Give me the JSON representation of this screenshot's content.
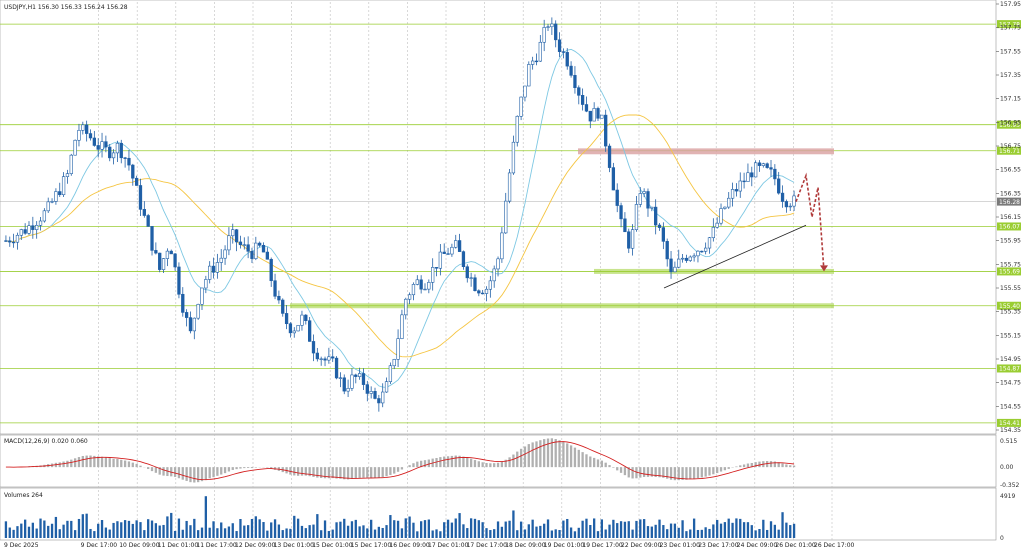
{
  "window": {
    "symbol_info": "USDJPY,H1  156.30 156.33 156.24 156.28"
  },
  "colors": {
    "bull": "#1f5fa6",
    "bear": "#1f5fa6",
    "ma_fast": "#7ec8e3",
    "ma_slow": "#f5c542",
    "level": "#9acd32",
    "resistance_zone": "#d9a0a0",
    "trend": "#222222",
    "forecast": "#b03a3a",
    "macd_hist": "#b0b0b0",
    "macd_signal": "#d42020",
    "volume": "#1f5fa6",
    "grid": "#bfbfbf",
    "current_tag": "#7a7a7a"
  },
  "main_panel": {
    "price_axis_ticks": [
      "157.95",
      "157.75",
      "157.55",
      "157.35",
      "157.15",
      "156.95",
      "156.75",
      "156.55",
      "156.35",
      "156.15",
      "155.95",
      "155.75",
      "155.55",
      "155.35",
      "155.15",
      "154.95",
      "154.75",
      "154.55",
      "154.35"
    ],
    "level_tags": [
      "157.78",
      "156.93",
      "156.71",
      "156.07",
      "155.69",
      "155.40",
      "154.87",
      "154.41"
    ],
    "current_price": "156.28"
  },
  "time_axis": [
    "9 Dec 2025",
    "9 Dec 17:00",
    "10 Dec 09:00",
    "11 Dec 01:00",
    "11 Dec 17:00",
    "12 Dec 09:00",
    "13 Dec 01:00",
    "15 Dec 01:00",
    "15 Dec 17:00",
    "16 Dec 09:00",
    "17 Dec 01:00",
    "17 Dec 17:00",
    "18 Dec 09:00",
    "19 Dec 01:00",
    "19 Dec 17:00",
    "22 Dec 09:00",
    "23 Dec 01:00",
    "23 Dec 17:00",
    "24 Dec 09:00",
    "26 Dec 01:00",
    "26 Dec 17:00"
  ],
  "macd_panel": {
    "label": "MACD(12,26,9) 0.020 0.060",
    "ticks": [
      "0.515",
      "0.00",
      "-0.352"
    ]
  },
  "volume_panel": {
    "label": "Volumes 264",
    "ticks": [
      "4919",
      "0"
    ]
  },
  "chart_data": {
    "type": "candlestick",
    "symbol": "USDJPY",
    "timeframe": "H1",
    "ylim": [
      154.35,
      157.95
    ],
    "horizontal_levels": [
      157.78,
      156.93,
      156.71,
      156.07,
      155.69,
      155.4,
      154.87,
      154.41
    ],
    "resistance_zone": {
      "from": 156.68,
      "to": 156.73
    },
    "close_path": [
      [
        0,
        155.95
      ],
      [
        4,
        156.05
      ],
      [
        8,
        156.2
      ],
      [
        12,
        156.5
      ],
      [
        14,
        156.9
      ],
      [
        16,
        156.85
      ],
      [
        18,
        156.75
      ],
      [
        20,
        156.7
      ],
      [
        22,
        156.75
      ],
      [
        24,
        156.6
      ],
      [
        26,
        156.3
      ],
      [
        28,
        156.0
      ],
      [
        30,
        155.7
      ],
      [
        32,
        155.95
      ],
      [
        34,
        155.5
      ],
      [
        36,
        155.15
      ],
      [
        38,
        155.55
      ],
      [
        40,
        155.7
      ],
      [
        42,
        155.8
      ],
      [
        44,
        156.0
      ],
      [
        46,
        155.9
      ],
      [
        48,
        155.85
      ],
      [
        50,
        155.9
      ],
      [
        52,
        155.6
      ],
      [
        54,
        155.3
      ],
      [
        56,
        155.2
      ],
      [
        58,
        155.3
      ],
      [
        60,
        155.05
      ],
      [
        62,
        154.95
      ],
      [
        64,
        154.9
      ],
      [
        66,
        154.7
      ],
      [
        68,
        154.8
      ],
      [
        70,
        154.75
      ],
      [
        72,
        154.6
      ],
      [
        74,
        154.65
      ],
      [
        76,
        155.0
      ],
      [
        78,
        155.45
      ],
      [
        80,
        155.6
      ],
      [
        82,
        155.6
      ],
      [
        84,
        155.75
      ],
      [
        86,
        155.85
      ],
      [
        88,
        155.9
      ],
      [
        90,
        155.7
      ],
      [
        92,
        155.55
      ],
      [
        94,
        155.55
      ],
      [
        96,
        155.75
      ],
      [
        98,
        156.4
      ],
      [
        100,
        157.0
      ],
      [
        102,
        157.4
      ],
      [
        104,
        157.55
      ],
      [
        106,
        157.8
      ],
      [
        108,
        157.6
      ],
      [
        110,
        157.45
      ],
      [
        112,
        157.2
      ],
      [
        114,
        157.0
      ],
      [
        116,
        157.05
      ],
      [
        118,
        156.6
      ],
      [
        120,
        156.1
      ],
      [
        122,
        155.9
      ],
      [
        124,
        156.4
      ],
      [
        126,
        156.2
      ],
      [
        128,
        156.0
      ],
      [
        130,
        155.65
      ],
      [
        132,
        155.8
      ],
      [
        134,
        155.85
      ],
      [
        136,
        155.9
      ],
      [
        138,
        156.0
      ],
      [
        140,
        156.2
      ],
      [
        142,
        156.35
      ],
      [
        144,
        156.45
      ],
      [
        146,
        156.55
      ],
      [
        148,
        156.55
      ],
      [
        150,
        156.5
      ],
      [
        152,
        156.3
      ],
      [
        154,
        156.28
      ]
    ],
    "forecast_path": [
      [
        156.28,
        0
      ],
      [
        156.5,
        1
      ],
      [
        156.15,
        2
      ],
      [
        156.4,
        3
      ],
      [
        155.69,
        4
      ]
    ],
    "trendline": [
      [
        155.55,
        0
      ],
      [
        156.08,
        1
      ]
    ]
  }
}
